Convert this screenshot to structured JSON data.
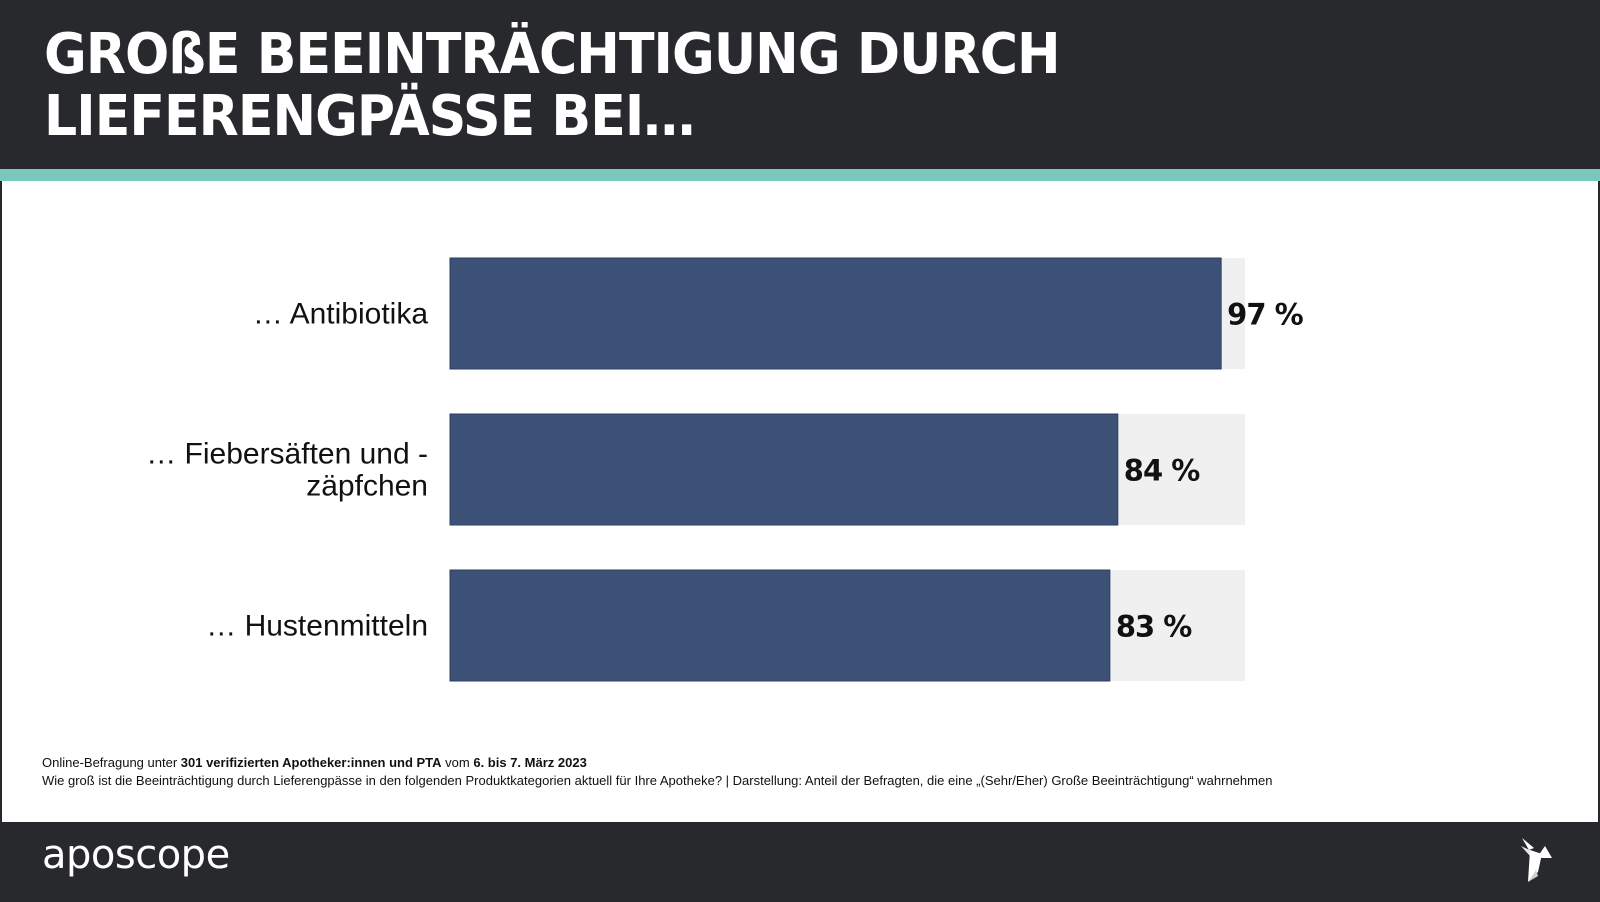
{
  "header": {
    "title_line1": "GROßE BEEINTRÄCHTIGUNG DURCH",
    "title_line2": "LIEFERENGPÄSSE BEI…"
  },
  "colors": {
    "header_bg": "#28292d",
    "accent": "#7ac7bb",
    "bar": "#3d5176",
    "track": "#f0f0f0"
  },
  "chart_data": {
    "type": "bar",
    "orientation": "horizontal",
    "title": "GROßE BEEINTRÄCHTIGUNG DURCH LIEFERENGPÄSSE BEI…",
    "categories": [
      "… Antibiotika",
      "… Fiebersäften und -\nzäpfchen",
      "… Hustenmitteln"
    ],
    "category_lines": [
      [
        "… Antibiotika"
      ],
      [
        "… Fiebersäften und -",
        "zäpfchen"
      ],
      [
        "… Hustenmitteln"
      ]
    ],
    "values": [
      97,
      84,
      83
    ],
    "value_labels": [
      "97 %",
      "84 %",
      "83 %"
    ],
    "unit": "%",
    "xlim": [
      0,
      100
    ],
    "xlabel": "",
    "ylabel": "",
    "grid": false,
    "legend": "none"
  },
  "notes": {
    "line1_part1": "Online-Befragung unter ",
    "line1_bold1": "301 verifizierten Apotheker:innen und PTA",
    "line1_part2": " vom ",
    "line1_bold2": "6. bis 7. März 2023",
    "line2": "Wie groß ist die Beeinträchtigung durch Lieferengpässe in den folgenden Produktkategorien aktuell für Ihre Apotheke? | Darstellung: Anteil der Befragten, die eine „(Sehr/Eher) Große Beeinträchtigung“ wahrnehmen"
  },
  "footer": {
    "brand": "aposcope",
    "logo_icon": "origami-bird-icon"
  }
}
